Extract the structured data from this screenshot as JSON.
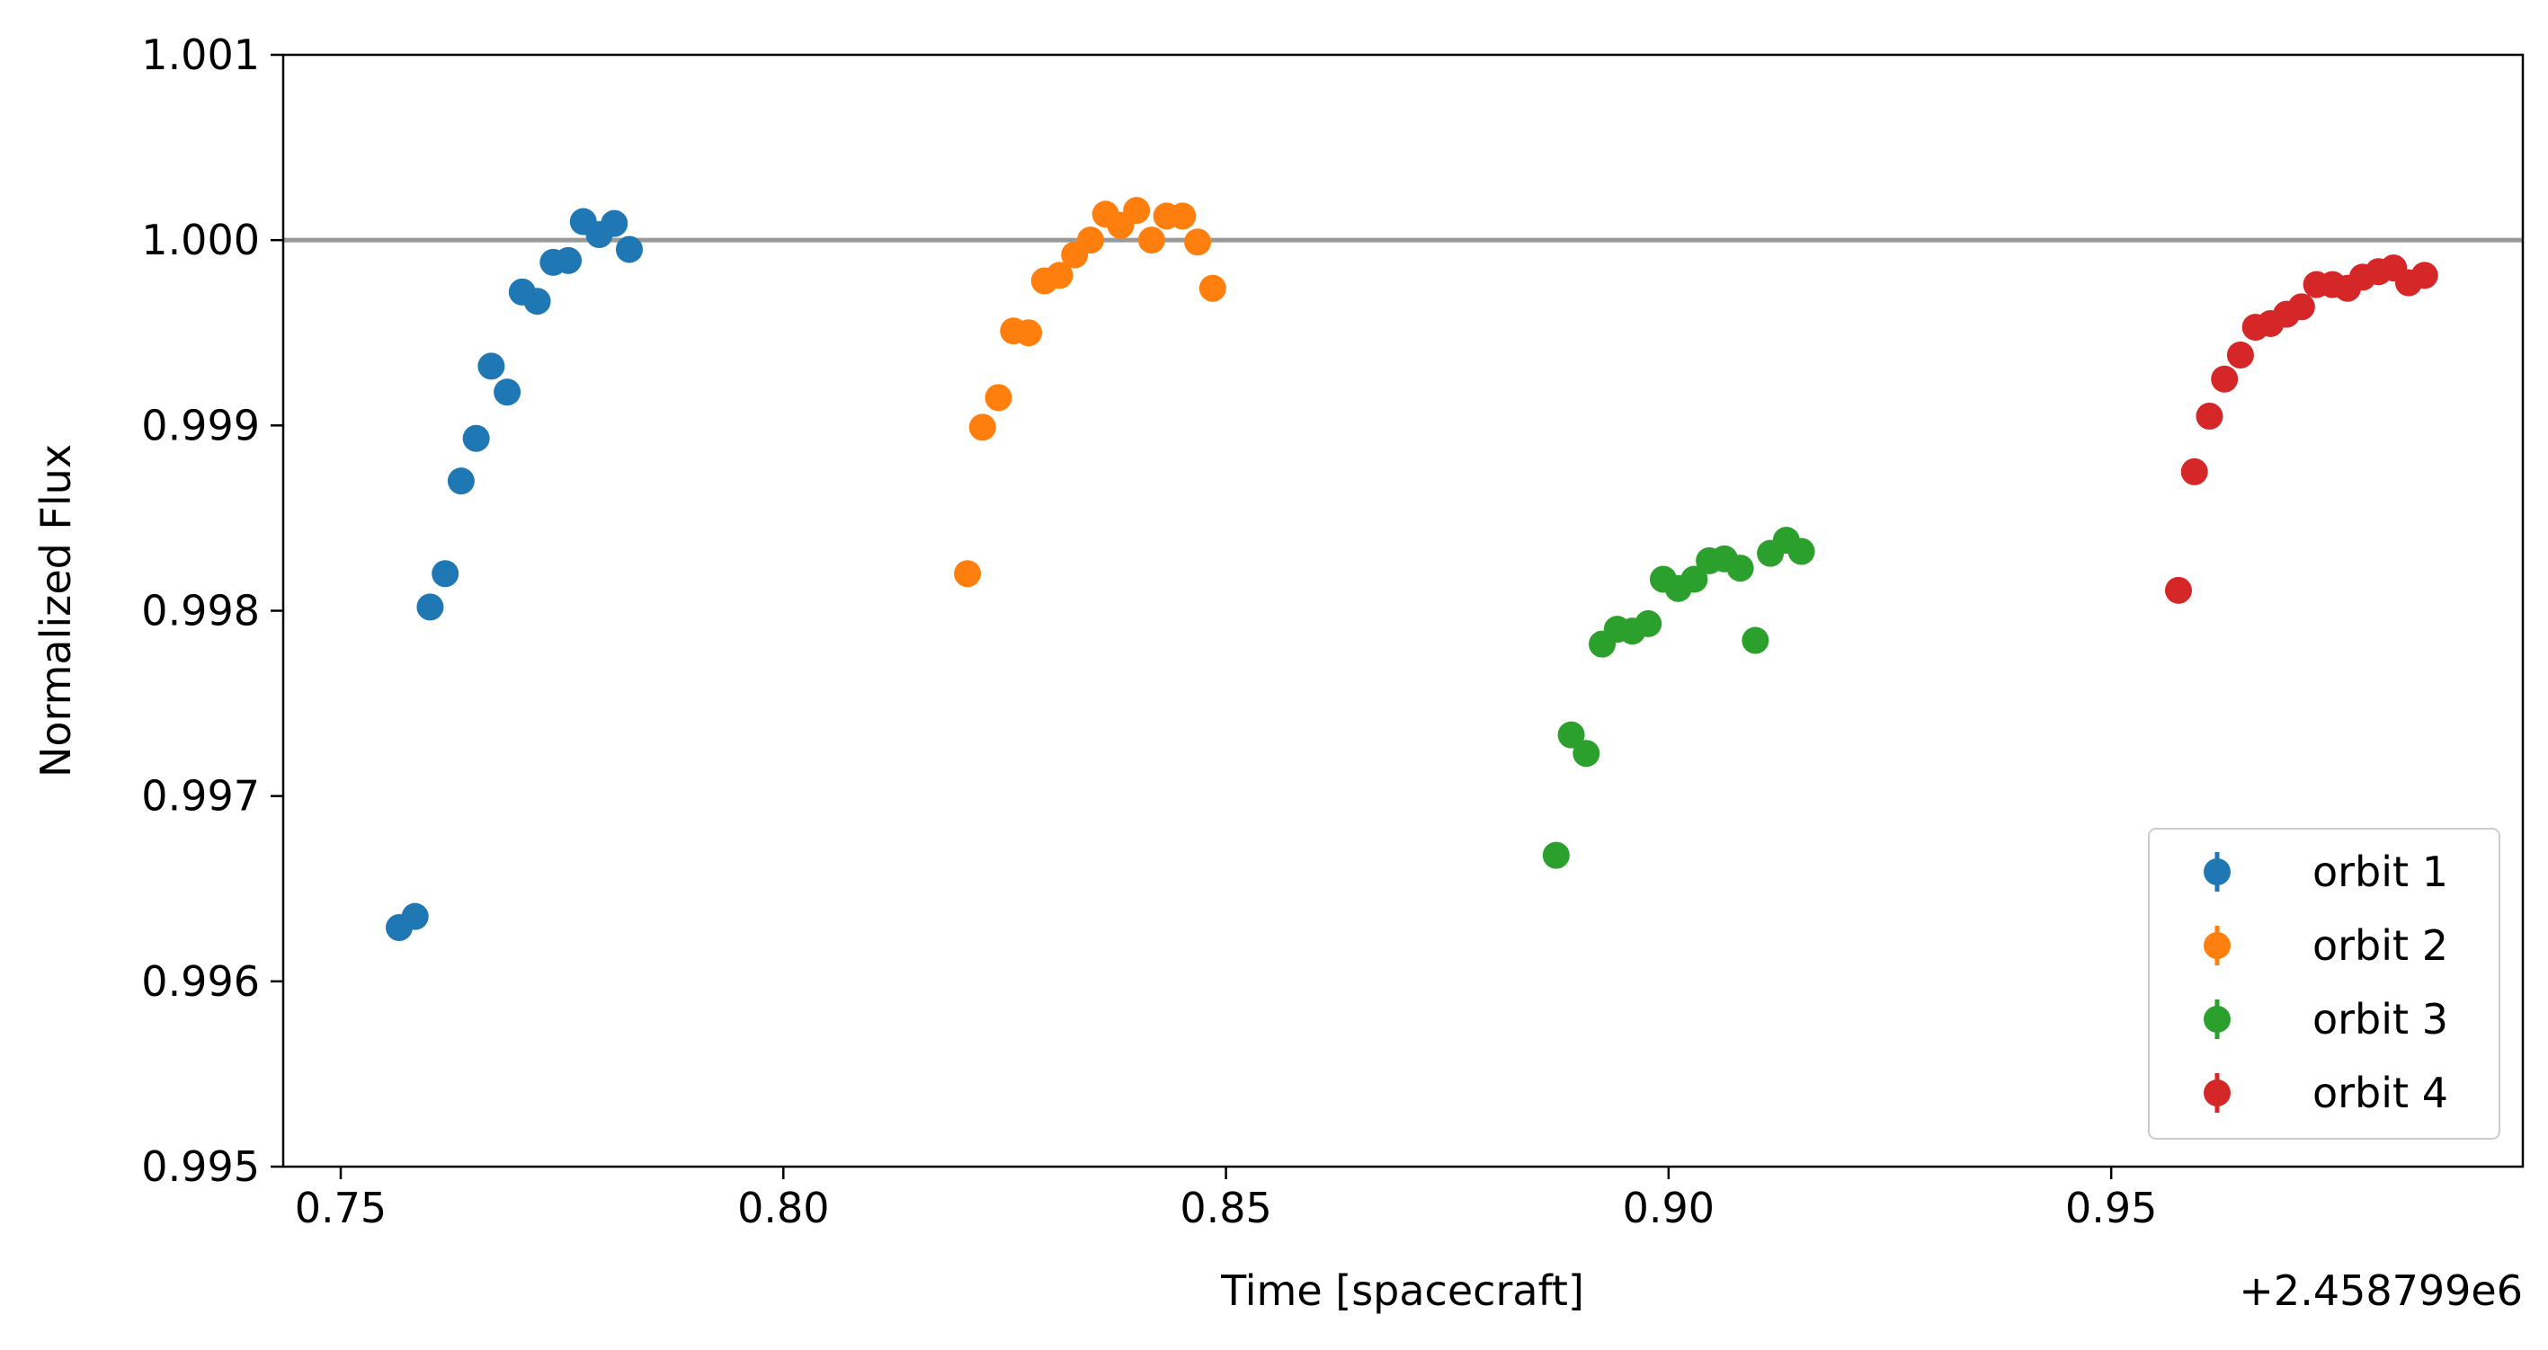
{
  "chart_data": {
    "type": "scatter",
    "xlabel": "Time [spacecraft]",
    "ylabel": "Normalized Flux",
    "x_offset_label": "+2.458799e6",
    "xlim": [
      0.7435,
      0.9965
    ],
    "ylim": [
      0.995,
      1.001
    ],
    "x_ticks": [
      0.75,
      0.8,
      0.85,
      0.9,
      0.95
    ],
    "x_tick_labels": [
      "0.75",
      "0.80",
      "0.85",
      "0.90",
      "0.95"
    ],
    "y_ticks": [
      0.995,
      0.996,
      0.997,
      0.998,
      0.999,
      1.0,
      1.001
    ],
    "y_tick_labels": [
      "0.995",
      "0.996",
      "0.997",
      "0.998",
      "0.999",
      "1.000",
      "1.001"
    ],
    "reference_line": {
      "y": 1.0,
      "color": "#999999"
    },
    "grid": false,
    "legend_position": "lower-right",
    "series": [
      {
        "name": "orbit 1",
        "color": "#1f77b4",
        "x": [
          0.7566,
          0.7584,
          0.7601,
          0.7618,
          0.7636,
          0.7653,
          0.767,
          0.7688,
          0.7705,
          0.7722,
          0.774,
          0.7757,
          0.7774,
          0.7792,
          0.7809,
          0.7826
        ],
        "y": [
          0.99629,
          0.99635,
          0.99802,
          0.9982,
          0.9987,
          0.99893,
          0.99932,
          0.99918,
          0.99972,
          0.99967,
          0.99988,
          0.99989,
          1.0001,
          1.00003,
          1.00009,
          0.99995
        ]
      },
      {
        "name": "orbit 2",
        "color": "#ff7f0e",
        "x": [
          0.8208,
          0.8225,
          0.8243,
          0.826,
          0.8277,
          0.8295,
          0.8312,
          0.8329,
          0.8347,
          0.8364,
          0.8381,
          0.8399,
          0.8416,
          0.8433,
          0.8451,
          0.8468,
          0.8485
        ],
        "y": [
          0.9982,
          0.99899,
          0.99915,
          0.99951,
          0.9995,
          0.99978,
          0.99981,
          0.99992,
          1.0,
          1.00014,
          1.00008,
          1.00016,
          1.0,
          1.00013,
          1.00013,
          0.99999,
          0.99974
        ]
      },
      {
        "name": "orbit 3",
        "color": "#2ca02c",
        "x": [
          0.8873,
          0.889,
          0.8907,
          0.8925,
          0.8942,
          0.8959,
          0.8977,
          0.8994,
          0.9011,
          0.9029,
          0.9046,
          0.9063,
          0.9081,
          0.9098,
          0.9115,
          0.9133,
          0.915
        ],
        "y": [
          0.99668,
          0.99733,
          0.99723,
          0.99782,
          0.9979,
          0.99789,
          0.99793,
          0.99817,
          0.99812,
          0.99817,
          0.99827,
          0.99828,
          0.99823,
          0.99784,
          0.99831,
          0.99838,
          0.99832
        ]
      },
      {
        "name": "orbit 4",
        "color": "#d62728",
        "x": [
          0.9576,
          0.9594,
          0.9611,
          0.9628,
          0.9646,
          0.9663,
          0.968,
          0.9698,
          0.9715,
          0.9732,
          0.975,
          0.9767,
          0.9784,
          0.9802,
          0.9819,
          0.9836,
          0.9854
        ],
        "y": [
          0.99811,
          0.99875,
          0.99905,
          0.99925,
          0.99938,
          0.99953,
          0.99955,
          0.9996,
          0.99964,
          0.99976,
          0.99976,
          0.99974,
          0.9998,
          0.99983,
          0.99985,
          0.99977,
          0.99981
        ]
      }
    ]
  }
}
